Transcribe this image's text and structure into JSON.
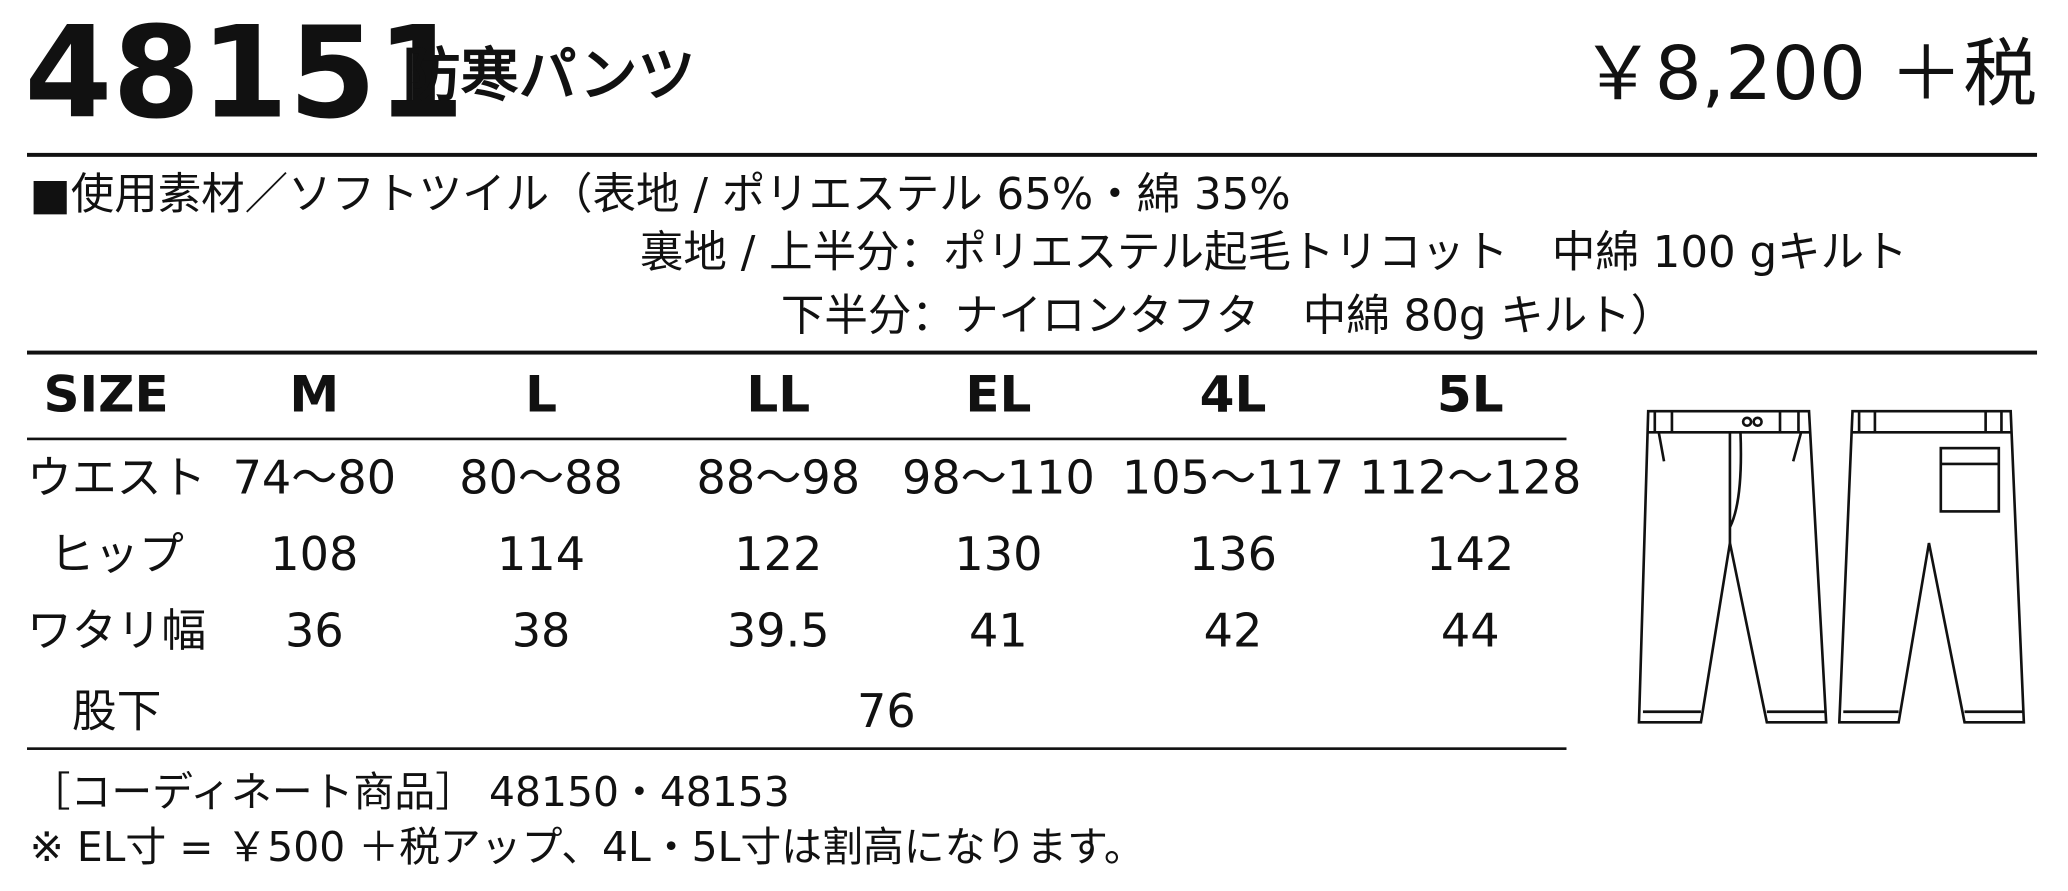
{
  "header": {
    "code": "48151",
    "name": "防寒パンツ",
    "price": "￥8,200 ＋税"
  },
  "material": [
    "■使用素材／ソフトツイル（表地 / ポリエステル 65%・綿 35%",
    "裏地 / 上半分：ポリエステル起毛トリコット　中綿 100 gキルト",
    "下半分：ナイロンタフタ　中綿 80g キルト）"
  ],
  "table": {
    "header": [
      "SIZE",
      "M",
      "L",
      "LL",
      "EL",
      "4L",
      "5L"
    ],
    "rows": [
      [
        "ウエスト",
        "74～80",
        "80～88",
        "88～98",
        "98～110",
        "105～117",
        "112～128"
      ],
      [
        "ヒップ",
        "108",
        "114",
        "122",
        "130",
        "136",
        "142"
      ],
      [
        "ワタリ幅",
        "36",
        "38",
        "39.5",
        "41",
        "42",
        "44"
      ],
      [
        "股下",
        "76"
      ]
    ]
  },
  "notes": [
    "［コーディネート商品］ 48150・48153",
    "※ EL寸 = ￥500 ＋税アップ、4L・5L寸は割高になります。"
  ]
}
